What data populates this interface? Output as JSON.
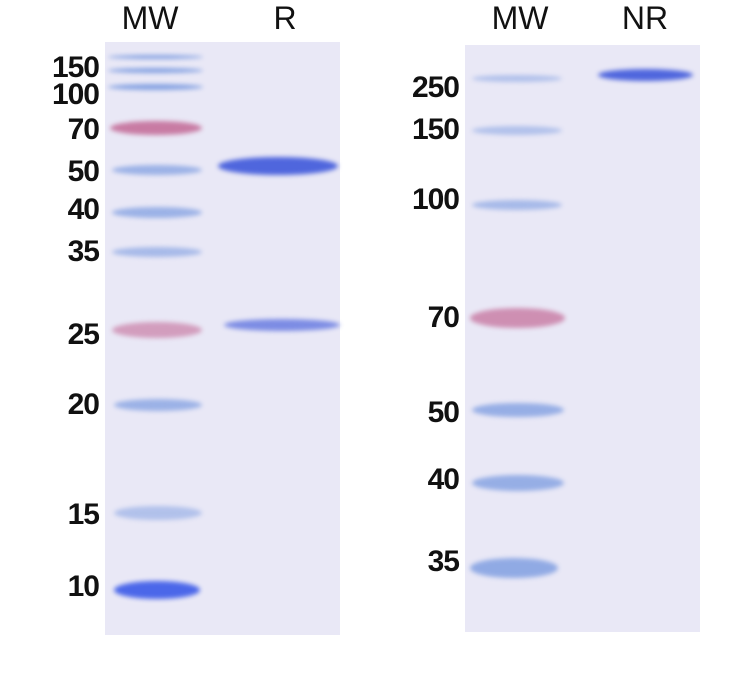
{
  "left_panel": {
    "lanes": [
      "MW",
      "R"
    ],
    "marker_labels": [
      "150",
      "100",
      "70",
      "50",
      "40",
      "35",
      "25",
      "20",
      "15",
      "10"
    ]
  },
  "right_panel": {
    "lanes": [
      "MW",
      "NR"
    ],
    "marker_labels": [
      "250",
      "150",
      "100",
      "70",
      "50",
      "40",
      "35"
    ]
  },
  "colors": {
    "gel": "#e9e8f6",
    "blue_band": "#4f66dd",
    "pink_band": "#c0608f",
    "marker_band": "#7b9be0"
  }
}
